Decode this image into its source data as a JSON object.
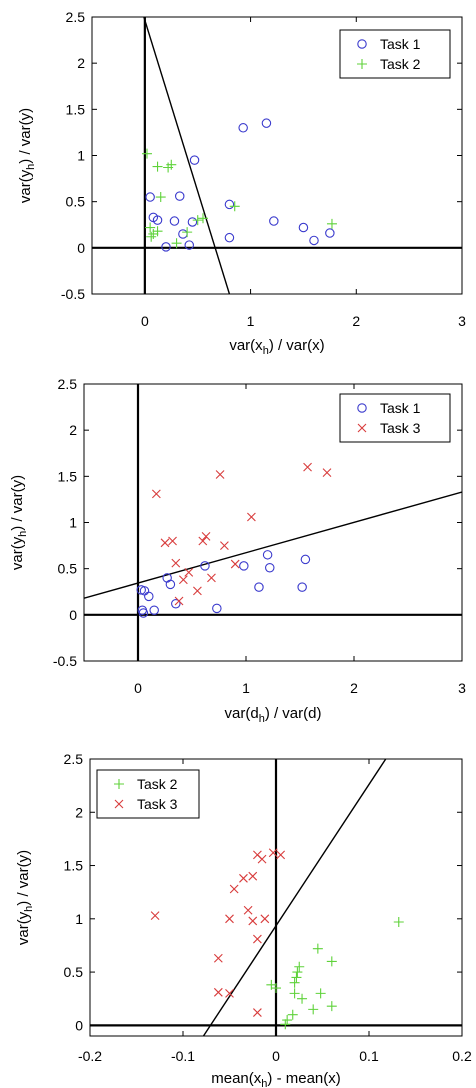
{
  "chart_data": [
    {
      "type": "scatter",
      "xlim": [
        -0.5,
        3
      ],
      "ylim": [
        -0.5,
        2.5
      ],
      "xticks": [
        "0",
        "1",
        "2",
        "3"
      ],
      "yticks": [
        "-0.5",
        "0",
        "0.5",
        "1",
        "1.5",
        "2",
        "2.5"
      ],
      "xlabel": {
        "pre": "var(x",
        "sub": "h",
        "post": ") / var(x)"
      },
      "ylabel": {
        "pre": "var(y",
        "sub": "h",
        "post": ") / var(y)"
      },
      "legend_position": "top-right",
      "reference_lines": {
        "x0": true,
        "y0": true
      },
      "boundary": {
        "x1": -0.05,
        "y1": 2.65,
        "x2": 0.8,
        "y2": -0.5
      },
      "series": [
        {
          "name": "Task 1",
          "marker": "circle",
          "color": "#3a3acd",
          "points": [
            [
              0.05,
              0.55
            ],
            [
              0.08,
              0.33
            ],
            [
              0.12,
              0.3
            ],
            [
              0.2,
              0.01
            ],
            [
              0.28,
              0.29
            ],
            [
              0.33,
              0.56
            ],
            [
              0.36,
              0.15
            ],
            [
              0.42,
              0.03
            ],
            [
              0.45,
              0.28
            ],
            [
              0.47,
              0.95
            ],
            [
              0.8,
              0.11
            ],
            [
              0.8,
              0.47
            ],
            [
              0.93,
              1.3
            ],
            [
              1.15,
              1.35
            ],
            [
              1.22,
              0.29
            ],
            [
              1.5,
              0.22
            ],
            [
              1.6,
              0.08
            ],
            [
              1.75,
              0.16
            ]
          ]
        },
        {
          "name": "Task 2",
          "marker": "plus",
          "color": "#5fd23a",
          "points": [
            [
              0.02,
              1.02
            ],
            [
              0.05,
              0.22
            ],
            [
              0.06,
              0.12
            ],
            [
              0.08,
              0.15
            ],
            [
              0.12,
              0.18
            ],
            [
              0.12,
              0.88
            ],
            [
              0.15,
              0.55
            ],
            [
              0.22,
              0.87
            ],
            [
              0.25,
              0.9
            ],
            [
              0.3,
              0.05
            ],
            [
              0.4,
              0.17
            ],
            [
              0.5,
              0.3
            ],
            [
              0.55,
              0.32
            ],
            [
              0.85,
              0.45
            ],
            [
              1.77,
              0.26
            ]
          ]
        }
      ]
    },
    {
      "type": "scatter",
      "xlim": [
        -0.5,
        3
      ],
      "ylim": [
        -0.5,
        2.5
      ],
      "xticks": [
        "0",
        "1",
        "2",
        "3"
      ],
      "yticks": [
        "-0.5",
        "0",
        "0.5",
        "1",
        "1.5",
        "2",
        "2.5"
      ],
      "xlabel": {
        "pre": "var(d",
        "sub": "h",
        "post": ") / var(d)"
      },
      "ylabel": {
        "pre": "var(y",
        "sub": "h",
        "post": ") / var(y)"
      },
      "legend_position": "top-right",
      "reference_lines": {
        "x0": true,
        "y0": true
      },
      "boundary": {
        "x1": -0.5,
        "y1": 0.18,
        "x2": 3.0,
        "y2": 1.33
      },
      "series": [
        {
          "name": "Task 1",
          "marker": "circle",
          "color": "#3a3acd",
          "points": [
            [
              0.03,
              0.27
            ],
            [
              0.04,
              0.05
            ],
            [
              0.05,
              0.02
            ],
            [
              0.06,
              0.26
            ],
            [
              0.1,
              0.2
            ],
            [
              0.15,
              0.05
            ],
            [
              0.27,
              0.4
            ],
            [
              0.3,
              0.33
            ],
            [
              0.35,
              0.12
            ],
            [
              0.62,
              0.53
            ],
            [
              0.73,
              0.07
            ],
            [
              0.98,
              0.53
            ],
            [
              1.12,
              0.3
            ],
            [
              1.2,
              0.65
            ],
            [
              1.22,
              0.51
            ],
            [
              1.52,
              0.3
            ],
            [
              1.55,
              0.6
            ]
          ]
        },
        {
          "name": "Task 3",
          "marker": "x",
          "color": "#d83c3c",
          "points": [
            [
              0.17,
              1.31
            ],
            [
              0.25,
              0.78
            ],
            [
              0.32,
              0.8
            ],
            [
              0.35,
              0.56
            ],
            [
              0.38,
              0.15
            ],
            [
              0.42,
              0.38
            ],
            [
              0.47,
              0.46
            ],
            [
              0.55,
              0.26
            ],
            [
              0.6,
              0.8
            ],
            [
              0.63,
              0.85
            ],
            [
              0.68,
              0.4
            ],
            [
              0.76,
              1.52
            ],
            [
              0.8,
              0.75
            ],
            [
              0.9,
              0.55
            ],
            [
              1.05,
              1.06
            ],
            [
              1.57,
              1.6
            ],
            [
              1.75,
              1.54
            ]
          ]
        }
      ]
    },
    {
      "type": "scatter",
      "xlim": [
        -0.2,
        0.2
      ],
      "ylim": [
        -0.1,
        2.5
      ],
      "xticks": [
        "-0.2",
        "-0.1",
        "0",
        "0.1",
        "0.2"
      ],
      "yticks": [
        "0",
        "0.5",
        "1",
        "1.5",
        "2",
        "2.5"
      ],
      "xlabel": {
        "pre": "mean(x",
        "sub": "h",
        "post": ") - mean(x)"
      },
      "ylabel": {
        "pre": "var(y",
        "sub": "h",
        "post": ") / var(y)"
      },
      "legend_position": "top-left",
      "reference_lines": {
        "x0": true,
        "y0": true
      },
      "boundary": {
        "x1": -0.078,
        "y1": -0.1,
        "x2": 0.118,
        "y2": 2.5
      },
      "series": [
        {
          "name": "Task 2",
          "marker": "plus",
          "color": "#5fd23a",
          "points": [
            [
              -0.005,
              0.38
            ],
            [
              0.0,
              0.35
            ],
            [
              0.01,
              0.01
            ],
            [
              0.012,
              0.05
            ],
            [
              0.018,
              0.1
            ],
            [
              0.02,
              0.3
            ],
            [
              0.02,
              0.4
            ],
            [
              0.022,
              0.45
            ],
            [
              0.023,
              0.5
            ],
            [
              0.025,
              0.55
            ],
            [
              0.028,
              0.25
            ],
            [
              0.04,
              0.15
            ],
            [
              0.045,
              0.72
            ],
            [
              0.048,
              0.3
            ],
            [
              0.06,
              0.6
            ],
            [
              0.06,
              0.18
            ],
            [
              0.132,
              0.97
            ]
          ]
        },
        {
          "name": "Task 3",
          "marker": "x",
          "color": "#d83c3c",
          "points": [
            [
              -0.13,
              1.03
            ],
            [
              -0.062,
              0.31
            ],
            [
              -0.062,
              0.63
            ],
            [
              -0.05,
              1.0
            ],
            [
              -0.05,
              0.3
            ],
            [
              -0.045,
              1.28
            ],
            [
              -0.035,
              1.38
            ],
            [
              -0.03,
              1.08
            ],
            [
              -0.025,
              0.98
            ],
            [
              -0.025,
              1.4
            ],
            [
              -0.02,
              0.12
            ],
            [
              -0.02,
              0.81
            ],
            [
              -0.02,
              1.6
            ],
            [
              -0.015,
              1.56
            ],
            [
              -0.012,
              1.0
            ],
            [
              -0.003,
              1.62
            ],
            [
              0.005,
              1.6
            ]
          ]
        }
      ]
    }
  ]
}
